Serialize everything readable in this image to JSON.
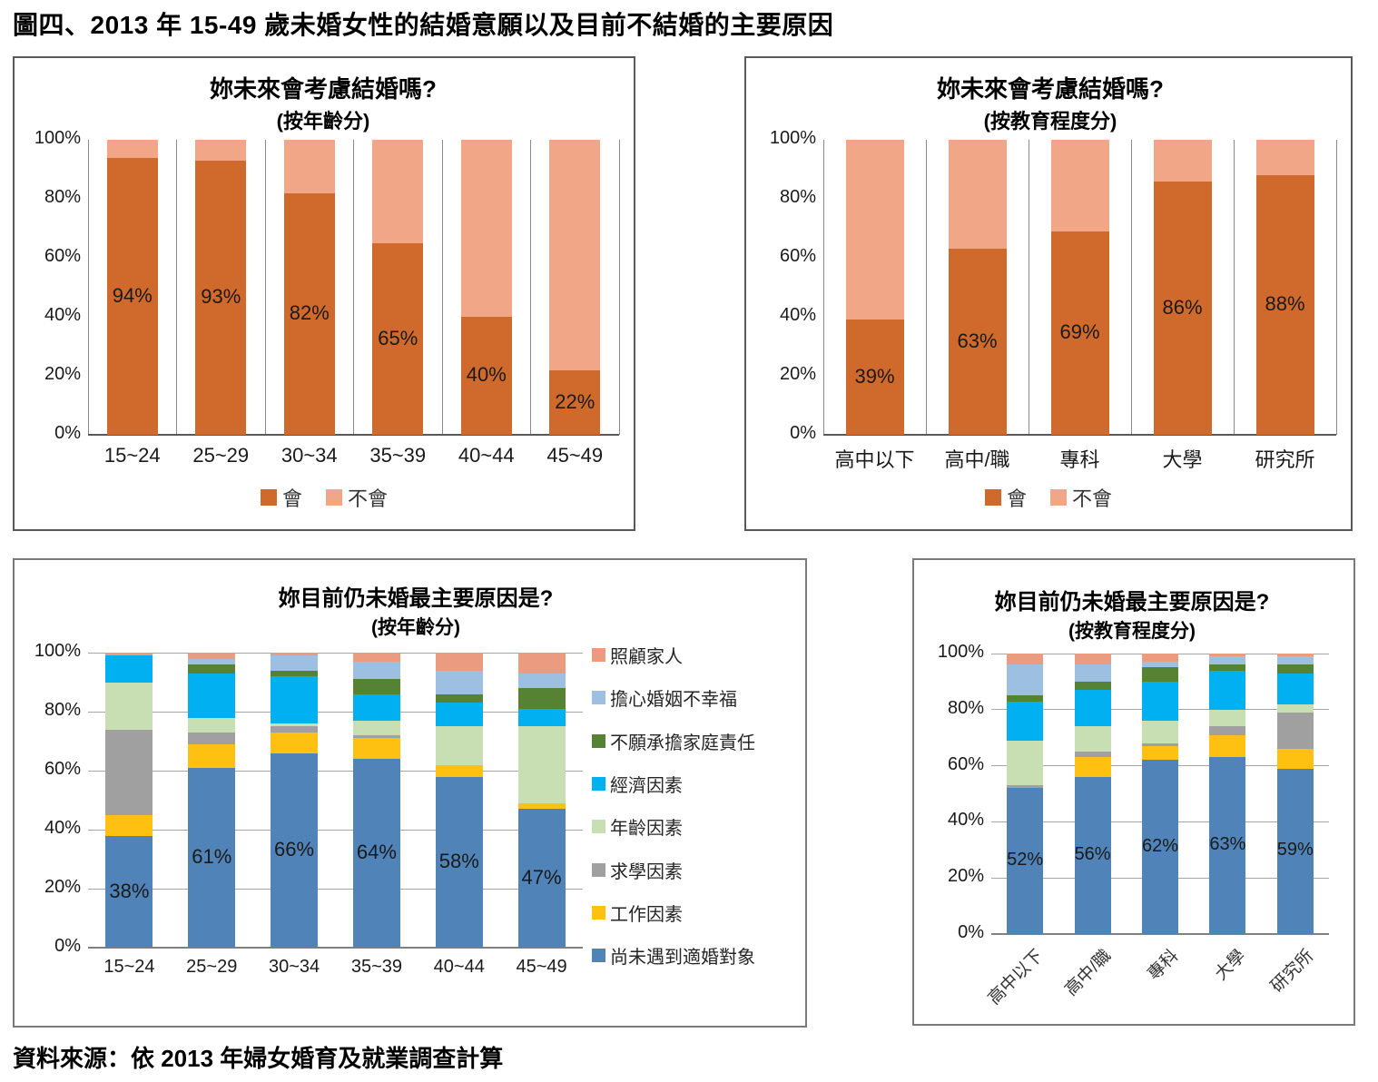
{
  "page": {
    "title": "圖四、2013 年 15-49 歲未婚女性的結婚意願以及目前不結婚的主要原因",
    "source": "資料來源：依 2013 年婦女婚育及就業調查計算"
  },
  "chart_data": [
    {
      "id": "marriage-intention-by-age",
      "type": "bar",
      "stacked": true,
      "title": "妳未來會考慮結婚嗎?",
      "subtitle": "(按年齡分)",
      "categories": [
        "15~24",
        "25~29",
        "30~34",
        "35~39",
        "40~44",
        "45~49"
      ],
      "series": [
        {
          "name": "會",
          "color": "#D06A2C",
          "values": [
            94,
            93,
            82,
            65,
            40,
            22
          ]
        },
        {
          "name": "不會",
          "color": "#F1A687",
          "values": [
            6,
            7,
            18,
            35,
            60,
            78
          ]
        }
      ],
      "value_labels_series": 0,
      "ylim": [
        0,
        100
      ],
      "yticks": [
        "0%",
        "20%",
        "40%",
        "60%",
        "80%",
        "100%"
      ],
      "legend_position": "bottom",
      "grid": "vertical-category-lines"
    },
    {
      "id": "marriage-intention-by-education",
      "type": "bar",
      "stacked": true,
      "title": "妳未來會考慮結婚嗎?",
      "subtitle": "(按教育程度分)",
      "categories": [
        "高中以下",
        "高中/職",
        "專科",
        "大學",
        "研究所"
      ],
      "series": [
        {
          "name": "會",
          "color": "#D06A2C",
          "values": [
            39,
            63,
            69,
            86,
            88
          ]
        },
        {
          "name": "不會",
          "color": "#F1A687",
          "values": [
            61,
            37,
            31,
            14,
            12
          ]
        }
      ],
      "value_labels_series": 0,
      "ylim": [
        0,
        100
      ],
      "yticks": [
        "0%",
        "20%",
        "40%",
        "60%",
        "80%",
        "100%"
      ],
      "legend_position": "bottom",
      "grid": "vertical-category-lines"
    },
    {
      "id": "reason-unmarried-by-age",
      "type": "bar",
      "stacked": true,
      "title": "妳目前仍未婚最主要原因是?",
      "subtitle": "(按年齡分)",
      "categories": [
        "15~24",
        "25~29",
        "30~34",
        "35~39",
        "40~44",
        "45~49"
      ],
      "series": [
        {
          "name": "尚未遇到適婚對象",
          "color": "#5083B8",
          "values": [
            38,
            61,
            66,
            64,
            58,
            47
          ]
        },
        {
          "name": "工作因素",
          "color": "#FEC011",
          "values": [
            7,
            8,
            7,
            7,
            4,
            2
          ]
        },
        {
          "name": "求學因素",
          "color": "#A0A0A0",
          "values": [
            29,
            4,
            2,
            1,
            0,
            0
          ]
        },
        {
          "name": "年齡因素",
          "color": "#C8DFB3",
          "values": [
            16,
            5,
            1,
            5,
            13,
            26
          ]
        },
        {
          "name": "經濟因素",
          "color": "#00B0F0",
          "values": [
            9,
            15,
            16,
            9,
            8,
            6
          ]
        },
        {
          "name": "不願承擔家庭責任",
          "color": "#568233",
          "values": [
            0,
            3,
            2,
            5,
            3,
            7
          ]
        },
        {
          "name": "擔心婚姻不幸福",
          "color": "#9DC0E2",
          "values": [
            0,
            2,
            5,
            6,
            8,
            5
          ]
        },
        {
          "name": "照顧家人",
          "color": "#EB9C80",
          "values": [
            1,
            2,
            1,
            3,
            6,
            7
          ]
        }
      ],
      "value_labels_series": 0,
      "ylim": [
        0,
        100
      ],
      "yticks": [
        "0%",
        "20%",
        "40%",
        "60%",
        "80%",
        "100%"
      ],
      "legend_position": "right",
      "grid": "horizontal"
    },
    {
      "id": "reason-unmarried-by-education",
      "type": "bar",
      "stacked": true,
      "title": "妳目前仍未婚最主要原因是?",
      "subtitle": "(按教育程度分)",
      "categories": [
        "高中以下",
        "高中/職",
        "專科",
        "大學",
        "研究所"
      ],
      "series": [
        {
          "name": "尚未遇到適婚對象",
          "color": "#5083B8",
          "values": [
            52,
            56,
            62,
            63,
            59
          ]
        },
        {
          "name": "工作因素",
          "color": "#FEC011",
          "values": [
            0,
            7,
            5,
            8,
            7
          ]
        },
        {
          "name": "求學因素",
          "color": "#A0A0A0",
          "values": [
            1,
            2,
            1,
            3,
            13
          ]
        },
        {
          "name": "年齡因素",
          "color": "#C8DFB3",
          "values": [
            16,
            9,
            8,
            6,
            3
          ]
        },
        {
          "name": "經濟因素",
          "color": "#00B0F0",
          "values": [
            14,
            13,
            14,
            14,
            11
          ]
        },
        {
          "name": "不願承擔家庭責任",
          "color": "#568233",
          "values": [
            2,
            3,
            5,
            2,
            3
          ]
        },
        {
          "name": "擔心婚姻不幸福",
          "color": "#9DC0E2",
          "values": [
            11,
            6,
            2,
            3,
            3
          ]
        },
        {
          "name": "照顧家人",
          "color": "#EB9C80",
          "values": [
            4,
            4,
            3,
            1,
            1
          ]
        }
      ],
      "value_labels_series": 0,
      "ylim": [
        0,
        100
      ],
      "yticks": [
        "0%",
        "20%",
        "40%",
        "60%",
        "80%",
        "100%"
      ],
      "legend_position": "none",
      "grid": "horizontal",
      "x_labels_rotated": true
    }
  ]
}
